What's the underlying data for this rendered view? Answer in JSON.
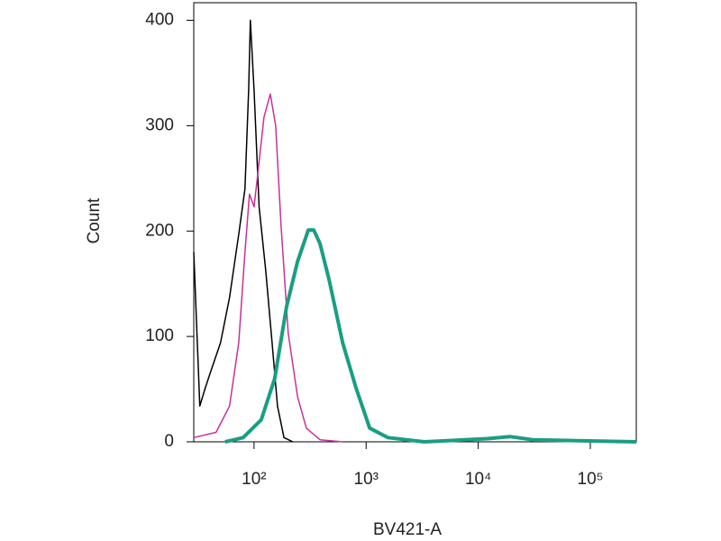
{
  "chart_data": {
    "type": "line",
    "x_label": "BV421-A",
    "y_label": "Count",
    "xscale": "log",
    "xlim": [
      29,
      257000
    ],
    "ylim": [
      0,
      415
    ],
    "xticks": [
      {
        "value": 100,
        "label": "10²"
      },
      {
        "value": 1000,
        "label": "10³"
      },
      {
        "value": 10000,
        "label": "10⁴"
      },
      {
        "value": 100000,
        "label": "10⁵"
      }
    ],
    "yticks": [
      0,
      100,
      200,
      300,
      400
    ],
    "series": [
      {
        "color": "#000000",
        "width": 1.5,
        "x": [
          29,
          32.8,
          36.7,
          41.8,
          50.3,
          60.5,
          73,
          83,
          89.5,
          92.8,
          100,
          111,
          127,
          145,
          162,
          185,
          222
        ],
        "values": [
          180,
          34,
          51,
          69,
          94,
          137,
          197,
          240,
          334,
          400,
          334,
          223,
          163,
          94,
          34,
          4,
          0
        ]
      },
      {
        "color": "#c8309a",
        "width": 1.5,
        "x": [
          29,
          45.8,
          60.5,
          73,
          83,
          91,
          100,
          109.7,
          122.6,
          139.7,
          156,
          174,
          202,
          244,
          293,
          388,
          617
        ],
        "values": [
          4,
          9,
          34,
          94,
          180,
          235,
          223,
          261,
          308,
          330,
          300,
          206,
          103,
          43,
          13,
          2,
          0
        ]
      },
      {
        "color": "#1a9e82",
        "width": 4,
        "x": [
          55.2,
          80,
          116,
          153,
          195,
          244,
          305,
          341,
          388,
          467,
          617,
          814,
          1076,
          1564,
          3300,
          12050,
          19140,
          30500,
          257000
        ],
        "values": [
          0,
          4,
          21,
          60,
          128,
          171,
          201,
          201,
          188,
          154,
          94,
          51,
          13,
          4,
          0,
          3,
          5,
          2,
          0
        ]
      }
    ]
  }
}
